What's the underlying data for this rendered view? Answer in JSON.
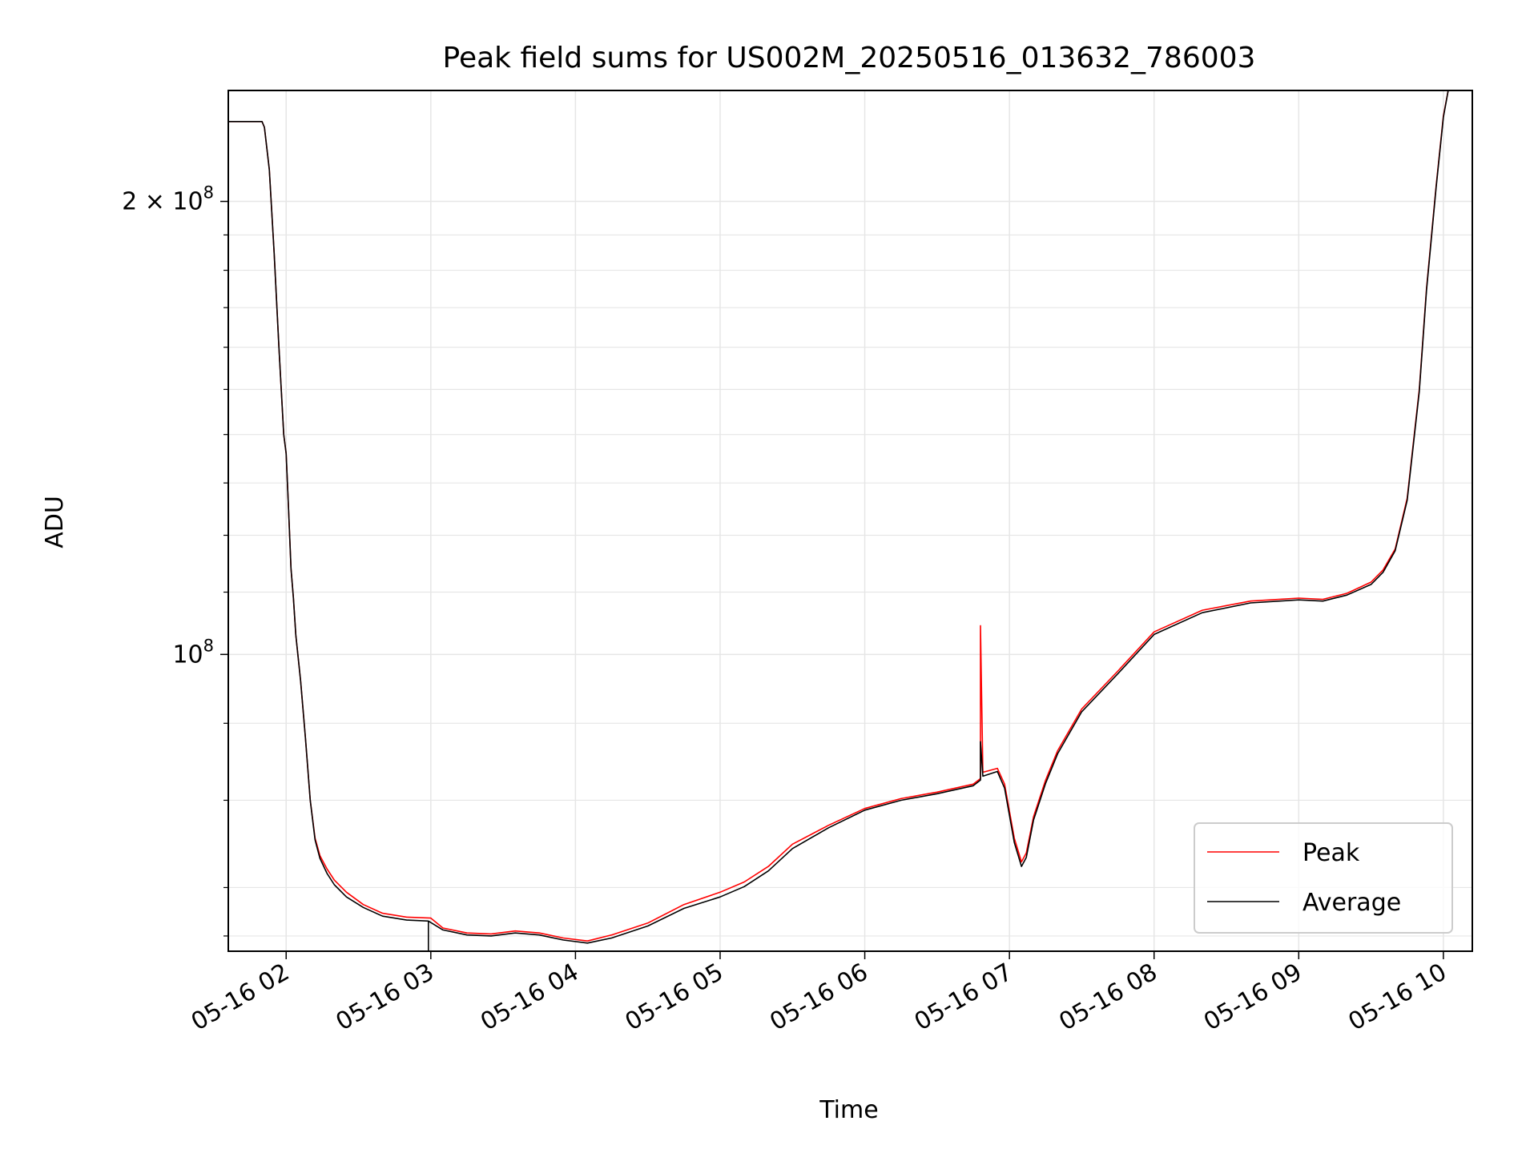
{
  "chart_data": {
    "type": "line",
    "title": "Peak field sums for US002M_20250516_013632_786003",
    "xlabel": "Time",
    "ylabel": "ADU",
    "y_scale": "log",
    "grid": true,
    "legend_position": "lower-right",
    "xlim": [
      "2025-05-16 01:36",
      "2025-05-16 10:12"
    ],
    "ylim": [
      63500000,
      237000000
    ],
    "x_ticks": [
      {
        "value": "2025-05-16 02:00",
        "label": "05-16 02"
      },
      {
        "value": "2025-05-16 03:00",
        "label": "05-16 03"
      },
      {
        "value": "2025-05-16 04:00",
        "label": "05-16 04"
      },
      {
        "value": "2025-05-16 05:00",
        "label": "05-16 05"
      },
      {
        "value": "2025-05-16 06:00",
        "label": "05-16 06"
      },
      {
        "value": "2025-05-16 07:00",
        "label": "05-16 07"
      },
      {
        "value": "2025-05-16 08:00",
        "label": "05-16 08"
      },
      {
        "value": "2025-05-16 09:00",
        "label": "05-16 09"
      },
      {
        "value": "2025-05-16 10:00",
        "label": "05-16 10"
      }
    ],
    "y_ticks_major": [
      {
        "value": 100000000,
        "base": "10",
        "exp": "8",
        "prefix": ""
      },
      {
        "value": 200000000,
        "base": "10",
        "exp": "8",
        "prefix": "2 × "
      }
    ],
    "y_ticks_minor": [
      65000000,
      70000000,
      80000000,
      90000000,
      110000000,
      120000000,
      130000000,
      140000000,
      150000000,
      160000000,
      170000000,
      180000000,
      190000000
    ],
    "series": [
      {
        "name": "Peak",
        "color": "#ff0000",
        "x": [
          "2025-05-16 01:36",
          "2025-05-16 01:50",
          "2025-05-16 01:51",
          "2025-05-16 01:53",
          "2025-05-16 01:55",
          "2025-05-16 01:57",
          "2025-05-16 01:59",
          "2025-05-16 02:00",
          "2025-05-16 02:01",
          "2025-05-16 02:02",
          "2025-05-16 02:03",
          "2025-05-16 02:04",
          "2025-05-16 02:06",
          "2025-05-16 02:08",
          "2025-05-16 02:10",
          "2025-05-16 02:12",
          "2025-05-16 02:14",
          "2025-05-16 02:17",
          "2025-05-16 02:20",
          "2025-05-16 02:25",
          "2025-05-16 02:32",
          "2025-05-16 02:40",
          "2025-05-16 02:50",
          "2025-05-16 03:00",
          "2025-05-16 03:05",
          "2025-05-16 03:15",
          "2025-05-16 03:25",
          "2025-05-16 03:35",
          "2025-05-16 03:45",
          "2025-05-16 03:55",
          "2025-05-16 04:05",
          "2025-05-16 04:15",
          "2025-05-16 04:30",
          "2025-05-16 04:45",
          "2025-05-16 05:00",
          "2025-05-16 05:10",
          "2025-05-16 05:20",
          "2025-05-16 05:30",
          "2025-05-16 05:45",
          "2025-05-16 06:00",
          "2025-05-16 06:15",
          "2025-05-16 06:30",
          "2025-05-16 06:45",
          "2025-05-16 06:48",
          "2025-05-16 06:48",
          "2025-05-16 06:49",
          "2025-05-16 06:55",
          "2025-05-16 06:58",
          "2025-05-16 07:02",
          "2025-05-16 07:05",
          "2025-05-16 07:07",
          "2025-05-16 07:10",
          "2025-05-16 07:15",
          "2025-05-16 07:20",
          "2025-05-16 07:30",
          "2025-05-16 07:45",
          "2025-05-16 08:00",
          "2025-05-16 08:20",
          "2025-05-16 08:40",
          "2025-05-16 09:00",
          "2025-05-16 09:10",
          "2025-05-16 09:20",
          "2025-05-16 09:30",
          "2025-05-16 09:35",
          "2025-05-16 09:40",
          "2025-05-16 09:45",
          "2025-05-16 09:50",
          "2025-05-16 09:53",
          "2025-05-16 09:57",
          "2025-05-16 10:00",
          "2025-05-16 10:02"
        ],
        "y": [
          226000000,
          226000000,
          224000000,
          210000000,
          185000000,
          160000000,
          140000000,
          136000000,
          125000000,
          114000000,
          109000000,
          103000000,
          96000000,
          88000000,
          80000000,
          75500000,
          73500000,
          72000000,
          70800000,
          69500000,
          68200000,
          67300000,
          66900000,
          66800000,
          65800000,
          65300000,
          65200000,
          65500000,
          65300000,
          64800000,
          64500000,
          65100000,
          66300000,
          68200000,
          69500000,
          70600000,
          72300000,
          74800000,
          77000000,
          79000000,
          80200000,
          81000000,
          82000000,
          82700000,
          104500000,
          83500000,
          84000000,
          82000000,
          75500000,
          72800000,
          73800000,
          78000000,
          82500000,
          86300000,
          92000000,
          97500000,
          103500000,
          107000000,
          108500000,
          109000000,
          108800000,
          109800000,
          111700000,
          113800000,
          117500000,
          127000000,
          150000000,
          175000000,
          205000000,
          228000000,
          237000000
        ]
      },
      {
        "name": "Average",
        "color": "#000000",
        "x": [
          "2025-05-16 01:36",
          "2025-05-16 01:50",
          "2025-05-16 01:51",
          "2025-05-16 01:53",
          "2025-05-16 01:55",
          "2025-05-16 01:57",
          "2025-05-16 01:59",
          "2025-05-16 02:00",
          "2025-05-16 02:01",
          "2025-05-16 02:02",
          "2025-05-16 02:03",
          "2025-05-16 02:04",
          "2025-05-16 02:06",
          "2025-05-16 02:08",
          "2025-05-16 02:10",
          "2025-05-16 02:12",
          "2025-05-16 02:14",
          "2025-05-16 02:17",
          "2025-05-16 02:20",
          "2025-05-16 02:25",
          "2025-05-16 02:32",
          "2025-05-16 02:40",
          "2025-05-16 02:50",
          "2025-05-16 02:59",
          "2025-05-16 02:59",
          "2025-05-16 02:59",
          "2025-05-16 03:05",
          "2025-05-16 03:15",
          "2025-05-16 03:25",
          "2025-05-16 03:35",
          "2025-05-16 03:45",
          "2025-05-16 03:55",
          "2025-05-16 04:05",
          "2025-05-16 04:15",
          "2025-05-16 04:30",
          "2025-05-16 04:45",
          "2025-05-16 05:00",
          "2025-05-16 05:10",
          "2025-05-16 05:20",
          "2025-05-16 05:30",
          "2025-05-16 05:45",
          "2025-05-16 06:00",
          "2025-05-16 06:15",
          "2025-05-16 06:30",
          "2025-05-16 06:45",
          "2025-05-16 06:48",
          "2025-05-16 06:48",
          "2025-05-16 06:49",
          "2025-05-16 06:55",
          "2025-05-16 06:58",
          "2025-05-16 07:02",
          "2025-05-16 07:05",
          "2025-05-16 07:07",
          "2025-05-16 07:10",
          "2025-05-16 07:15",
          "2025-05-16 07:20",
          "2025-05-16 07:30",
          "2025-05-16 07:45",
          "2025-05-16 08:00",
          "2025-05-16 08:20",
          "2025-05-16 08:40",
          "2025-05-16 09:00",
          "2025-05-16 09:10",
          "2025-05-16 09:20",
          "2025-05-16 09:30",
          "2025-05-16 09:35",
          "2025-05-16 09:40",
          "2025-05-16 09:45",
          "2025-05-16 09:50",
          "2025-05-16 09:53",
          "2025-05-16 09:57",
          "2025-05-16 10:00",
          "2025-05-16 10:02"
        ],
        "y": [
          226000000,
          226000000,
          224000000,
          210000000,
          185000000,
          160000000,
          140000000,
          136000000,
          125000000,
          114000000,
          109000000,
          103000000,
          96000000,
          88000000,
          80000000,
          75300000,
          73200000,
          71500000,
          70300000,
          69000000,
          67900000,
          67000000,
          66600000,
          66500000,
          63500000,
          66500000,
          65600000,
          65100000,
          65000000,
          65300000,
          65100000,
          64600000,
          64300000,
          64800000,
          66000000,
          67800000,
          69000000,
          70100000,
          71800000,
          74300000,
          76700000,
          78800000,
          80000000,
          80800000,
          81800000,
          82500000,
          87500000,
          83000000,
          83600000,
          81500000,
          75000000,
          72300000,
          73300000,
          77600000,
          82100000,
          85900000,
          91600000,
          97100000,
          103100000,
          106600000,
          108200000,
          108700000,
          108500000,
          109500000,
          111300000,
          113400000,
          117200000,
          126600000,
          149500000,
          174500000,
          204500000,
          227500000,
          237000000
        ]
      }
    ]
  }
}
